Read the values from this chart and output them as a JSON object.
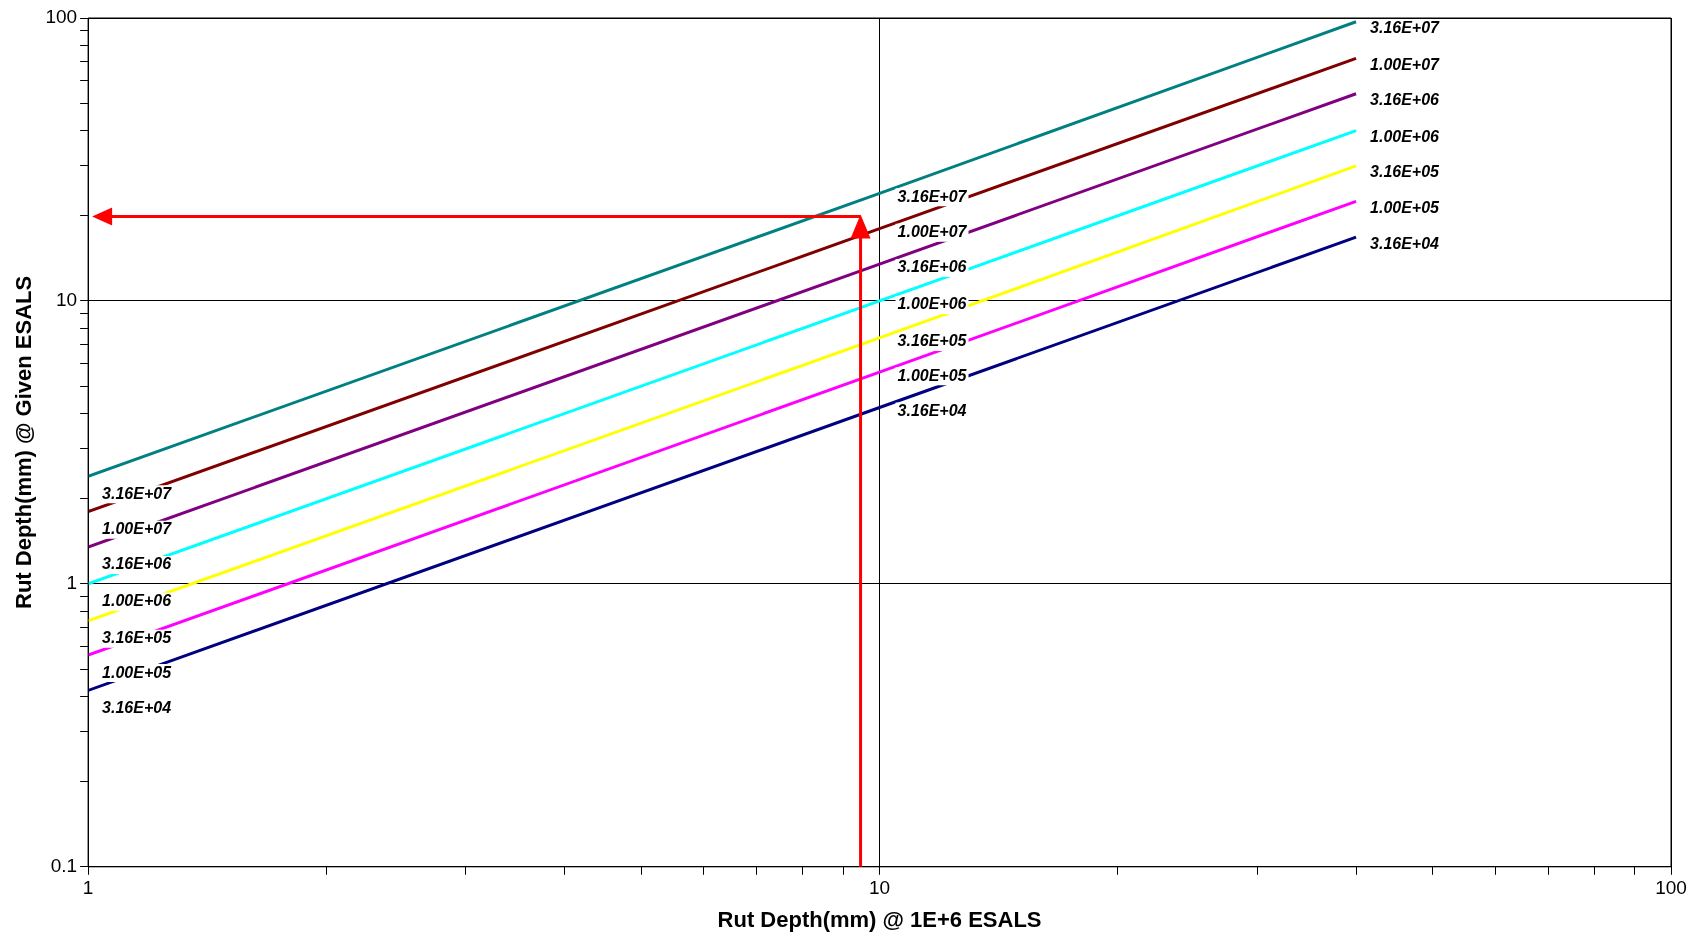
{
  "chart_data": {
    "type": "line",
    "xlabel": "Rut Depth(mm) @ 1E+6 ESALS",
    "ylabel": "Rut Depth(mm) @ Given ESALS",
    "log": "xy",
    "grid": true,
    "legend": false,
    "marker": "none",
    "line_style": "solid",
    "x": [
      1,
      10,
      40
    ],
    "xlim": [
      1,
      100
    ],
    "xticks": [
      1,
      {
        "value": 2,
        "label": null
      },
      {
        "value": 3,
        "label": null
      },
      {
        "value": 4,
        "label": null
      },
      {
        "value": 5,
        "label": null
      },
      {
        "value": 6,
        "label": null
      },
      {
        "value": 7,
        "label": null
      },
      {
        "value": 8,
        "label": null
      },
      {
        "value": 9,
        "label": null
      },
      10,
      {
        "value": 20,
        "label": null
      },
      {
        "value": 30,
        "label": null
      },
      {
        "value": 40,
        "label": null
      },
      {
        "value": 50,
        "label": null
      },
      {
        "value": 60,
        "label": null
      },
      {
        "value": 70,
        "label": null
      },
      {
        "value": 80,
        "label": null
      },
      {
        "value": 90,
        "label": null
      },
      100
    ],
    "ylim": [
      0.1,
      100
    ],
    "yticks": [
      0.1,
      {
        "value": 0.2,
        "label": null
      },
      {
        "value": 0.3,
        "label": null
      },
      {
        "value": 0.4,
        "label": null
      },
      {
        "value": 0.5,
        "label": null
      },
      {
        "value": 0.6,
        "label": null
      },
      {
        "value": 0.7,
        "label": null
      },
      {
        "value": 0.8,
        "label": null
      },
      {
        "value": 0.9,
        "label": null
      },
      1,
      {
        "value": 2,
        "label": null
      },
      {
        "value": 3,
        "label": null
      },
      {
        "value": 4,
        "label": null
      },
      {
        "value": 5,
        "label": null
      },
      {
        "value": 6,
        "label": null
      },
      {
        "value": 7,
        "label": null
      },
      {
        "value": 8,
        "label": null
      },
      {
        "value": 9,
        "label": null
      },
      10,
      {
        "value": 20,
        "label": null
      },
      {
        "value": 30,
        "label": null
      },
      {
        "value": 40,
        "label": null
      },
      {
        "value": 50,
        "label": null
      },
      {
        "value": 60,
        "label": null
      },
      {
        "value": 70,
        "label": null
      },
      {
        "value": 80,
        "label": null
      },
      {
        "value": 90,
        "label": null
      },
      100
    ],
    "series": [
      {
        "name": "3.16E+07",
        "color": "#008080",
        "values": [
          2.4,
          24,
          97
        ]
      },
      {
        "name": "1.00E+07",
        "color": "#800000",
        "values": [
          1.8,
          18,
          72
        ]
      },
      {
        "name": "3.16E+06",
        "color": "#800080",
        "values": [
          1.35,
          13.5,
          54
        ]
      },
      {
        "name": "1.00E+06",
        "color": "#00ffff",
        "values": [
          1,
          10,
          40
        ]
      },
      {
        "name": "3.16E+05",
        "color": "#ffff00",
        "values": [
          0.74,
          7.4,
          30
        ]
      },
      {
        "name": "1.00E+05",
        "color": "#ff00ff",
        "values": [
          0.56,
          5.6,
          22.5
        ]
      },
      {
        "name": "3.16E+04",
        "color": "#000080",
        "values": [
          0.42,
          4.2,
          16.8
        ]
      }
    ]
  }
}
